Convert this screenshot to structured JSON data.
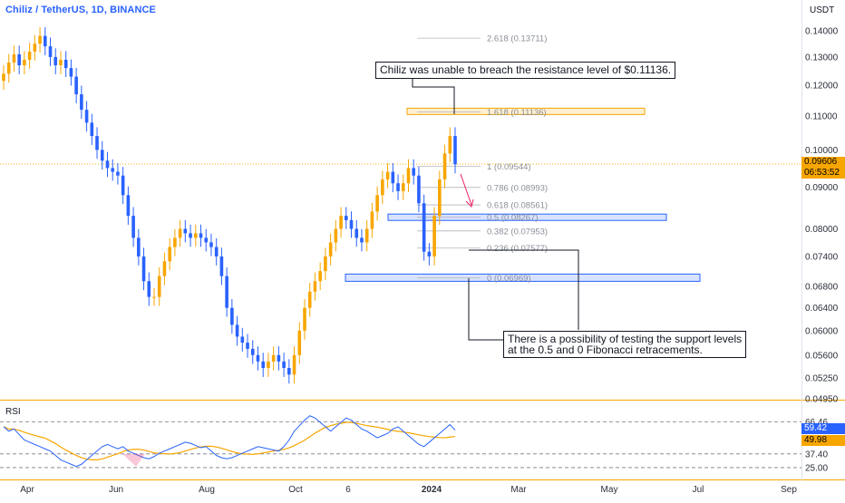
{
  "header": {
    "symbol": "Chiliz / TetherUS, 1D, BINANCE",
    "currency": "USDT"
  },
  "colors": {
    "up": "#f7a600",
    "down": "#2962ff",
    "fib_zone_resistance": "#f7a600",
    "fib_zone_support": "#2962ff",
    "rsi_line": "#2962ff",
    "rsi_ma": "#f7a600",
    "arrow": "#e91e63"
  },
  "chart_data": {
    "type": "candlestick",
    "title": "Chiliz / TetherUS, 1D, BINANCE",
    "y_ticks": [
      "0.14000",
      "0.13000",
      "0.12000",
      "0.11000",
      "0.10000",
      "0.09000",
      "0.08000",
      "0.07400",
      "0.06800",
      "0.06400",
      "0.06000",
      "0.05600",
      "0.05250",
      "0.04950"
    ],
    "x_ticks": [
      "Apr",
      "Jun",
      "Aug",
      "Oct",
      "6",
      "2024",
      "Mar",
      "May",
      "Jul",
      "Sep"
    ],
    "current_price": "0.09606",
    "countdown": "06:53:52",
    "close_series": [
      0.124,
      0.128,
      0.131,
      0.127,
      0.129,
      0.132,
      0.135,
      0.138,
      0.134,
      0.13,
      0.127,
      0.129,
      0.126,
      0.123,
      0.117,
      0.112,
      0.108,
      0.104,
      0.1,
      0.097,
      0.095,
      0.094,
      0.093,
      0.088,
      0.083,
      0.078,
      0.074,
      0.069,
      0.066,
      0.066,
      0.07,
      0.073,
      0.076,
      0.078,
      0.08,
      0.079,
      0.078,
      0.079,
      0.078,
      0.077,
      0.076,
      0.074,
      0.07,
      0.064,
      0.061,
      0.059,
      0.058,
      0.057,
      0.056,
      0.055,
      0.054,
      0.055,
      0.056,
      0.055,
      0.054,
      0.053,
      0.056,
      0.06,
      0.064,
      0.067,
      0.069,
      0.071,
      0.074,
      0.077,
      0.08,
      0.083,
      0.082,
      0.08,
      0.078,
      0.077,
      0.08,
      0.084,
      0.088,
      0.092,
      0.094,
      0.091,
      0.089,
      0.091,
      0.095,
      0.093,
      0.086,
      0.075,
      0.074,
      0.083,
      0.092,
      0.099,
      0.104,
      0.096
    ],
    "fib_levels": [
      {
        "ratio": "2.618",
        "price": 0.13711,
        "label": "2.618 (0.13711)"
      },
      {
        "ratio": "1.618",
        "price": 0.11136,
        "label": "1.618 (0.11136)"
      },
      {
        "ratio": "1",
        "price": 0.09544,
        "label": "1 (0.09544)"
      },
      {
        "ratio": "0.786",
        "price": 0.08993,
        "label": "0.786 (0.08993)"
      },
      {
        "ratio": "0.618",
        "price": 0.08561,
        "label": "0.618 (0.08561)"
      },
      {
        "ratio": "0.5",
        "price": 0.08267,
        "label": "0.5 (0.08267)"
      },
      {
        "ratio": "0.382",
        "price": 0.07953,
        "label": "0.382 (0.07953)"
      },
      {
        "ratio": "0.236",
        "price": 0.07577,
        "label": "0.236 (0.07577)"
      },
      {
        "ratio": "0",
        "price": 0.06969,
        "label": "0 (0.06969)"
      }
    ],
    "rsi": {
      "title": "RSI",
      "levels": [
        "66.46",
        "37.40",
        "25.00"
      ],
      "rsi_value": "59.42",
      "ma_value": "49.98",
      "series": [
        62,
        58,
        60,
        55,
        50,
        48,
        46,
        44,
        42,
        40,
        36,
        32,
        30,
        28,
        26,
        28,
        32,
        36,
        40,
        44,
        46,
        44,
        42,
        44,
        40,
        38,
        36,
        34,
        33,
        35,
        38,
        40,
        42,
        44,
        46,
        48,
        47,
        45,
        43,
        44,
        40,
        36,
        34,
        33,
        34,
        36,
        38,
        40,
        42,
        44,
        43,
        42,
        41,
        40,
        44,
        50,
        58,
        63,
        68,
        72,
        70,
        66,
        62,
        58,
        62,
        66,
        70,
        68,
        64,
        60,
        58,
        55,
        52,
        54,
        56,
        60,
        62,
        58,
        54,
        50,
        46,
        44,
        48,
        52,
        56,
        60,
        64,
        59
      ]
    },
    "annotations": [
      "Chiliz was unable to breach the resistance level of $0.11136.",
      "There is a possibility of testing the support levels",
      "at the 0.5 and 0 Fibonacci retracements."
    ]
  }
}
